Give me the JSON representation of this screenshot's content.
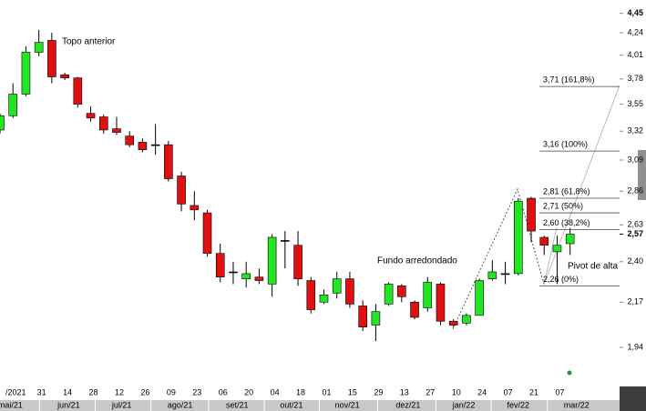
{
  "chart_data": {
    "type": "candlestick",
    "log_scale": true,
    "ylim": [
      1.76,
      4.6
    ],
    "yticks": [
      {
        "value": 4.45,
        "label": "4,45"
      },
      {
        "value": 4.24,
        "label": "4,24"
      },
      {
        "value": 4.01,
        "label": "4,01"
      },
      {
        "value": 3.78,
        "label": "3,78"
      },
      {
        "value": 3.55,
        "label": "3,55"
      },
      {
        "value": 3.32,
        "label": "3,32"
      },
      {
        "value": 3.09,
        "label": "3,09"
      },
      {
        "value": 2.86,
        "label": "2,86"
      },
      {
        "value": 2.63,
        "label": "2,63"
      },
      {
        "value": 2.4,
        "label": "2,40"
      },
      {
        "value": 2.17,
        "label": "2,17"
      },
      {
        "value": 1.94,
        "label": "1,94"
      }
    ],
    "last_price": {
      "value": 2.57,
      "label": "2,57"
    },
    "categories": [
      null,
      "/2021",
      null,
      "31",
      null,
      "14",
      null,
      "28",
      null,
      "12",
      null,
      "26",
      null,
      "09",
      null,
      "23",
      null,
      "06",
      null,
      "20",
      null,
      "04",
      null,
      "18",
      null,
      "01",
      null,
      "15",
      null,
      "29",
      null,
      "13",
      null,
      "27",
      null,
      "10",
      null,
      "24",
      null,
      "07",
      null,
      "21",
      null,
      "07",
      null
    ],
    "months": [
      "mai/21",
      "jun/21",
      "jul/21",
      "ago/21",
      "set/21",
      "out/21",
      "nov/21",
      "dez/21",
      "jan/22",
      "fev/22",
      "mar/22"
    ],
    "up_color": "#22e622",
    "down_color": "#e01010",
    "open": [
      3.33,
      3.45,
      3.64,
      4.04,
      4.16,
      3.82,
      3.79,
      3.47,
      3.44,
      3.34,
      3.28,
      3.23,
      3.21,
      3.21,
      2.97,
      2.76,
      2.71,
      2.45,
      2.34,
      2.3,
      2.31,
      2.27,
      2.53,
      2.5,
      2.29,
      2.17,
      2.22,
      2.3,
      2.15,
      2.05,
      2.16,
      2.26,
      2.17,
      2.14,
      2.27,
      2.07,
      2.06,
      2.1,
      2.3,
      2.33,
      2.33,
      2.81,
      2.55,
      2.46,
      2.51
    ],
    "high": [
      3.47,
      3.74,
      4.1,
      4.27,
      4.24,
      3.84,
      3.8,
      3.53,
      3.46,
      3.44,
      3.32,
      3.26,
      3.38,
      3.24,
      3.0,
      2.86,
      2.73,
      2.51,
      2.4,
      2.4,
      2.36,
      2.57,
      2.59,
      2.59,
      2.31,
      2.24,
      2.34,
      2.34,
      2.18,
      2.16,
      2.28,
      2.27,
      2.18,
      2.31,
      2.28,
      2.08,
      2.11,
      2.3,
      2.41,
      2.4,
      2.81,
      2.82,
      2.56,
      2.56,
      2.61
    ],
    "low": [
      3.3,
      3.43,
      3.62,
      4.0,
      3.74,
      3.77,
      3.52,
      3.4,
      3.3,
      3.29,
      3.19,
      3.15,
      3.13,
      2.93,
      2.72,
      2.66,
      2.43,
      2.28,
      2.27,
      2.25,
      2.27,
      2.2,
      2.36,
      2.26,
      2.11,
      2.16,
      2.19,
      2.14,
      2.02,
      1.97,
      2.15,
      2.17,
      2.08,
      2.12,
      2.05,
      2.04,
      2.05,
      2.1,
      2.29,
      2.27,
      2.32,
      2.52,
      2.44,
      2.27,
      2.44
    ],
    "close": [
      3.45,
      3.64,
      4.04,
      4.14,
      3.8,
      3.79,
      3.55,
      3.43,
      3.33,
      3.31,
      3.21,
      3.17,
      3.21,
      2.95,
      2.77,
      2.73,
      2.45,
      2.31,
      2.34,
      2.33,
      2.29,
      2.55,
      2.53,
      2.3,
      2.13,
      2.21,
      2.3,
      2.16,
      2.04,
      2.12,
      2.27,
      2.2,
      2.09,
      2.28,
      2.07,
      2.05,
      2.1,
      2.29,
      2.34,
      2.33,
      2.79,
      2.59,
      2.5,
      2.5,
      2.57
    ],
    "fib_levels": [
      {
        "value": 3.71,
        "label": "3,71 (161,8%)"
      },
      {
        "value": 3.16,
        "label": "3,16 (100%)"
      },
      {
        "value": 2.81,
        "label": "2,81 (61,8%)"
      },
      {
        "value": 2.71,
        "label": "2,71 (50%)"
      },
      {
        "value": 2.6,
        "label": "2,60 (38,2%)"
      },
      {
        "value": 2.26,
        "label": "2,26 (0%)"
      }
    ],
    "annotations": [
      "Topo anterior",
      "Fundo arredondado",
      "Pivot de alta"
    ]
  }
}
